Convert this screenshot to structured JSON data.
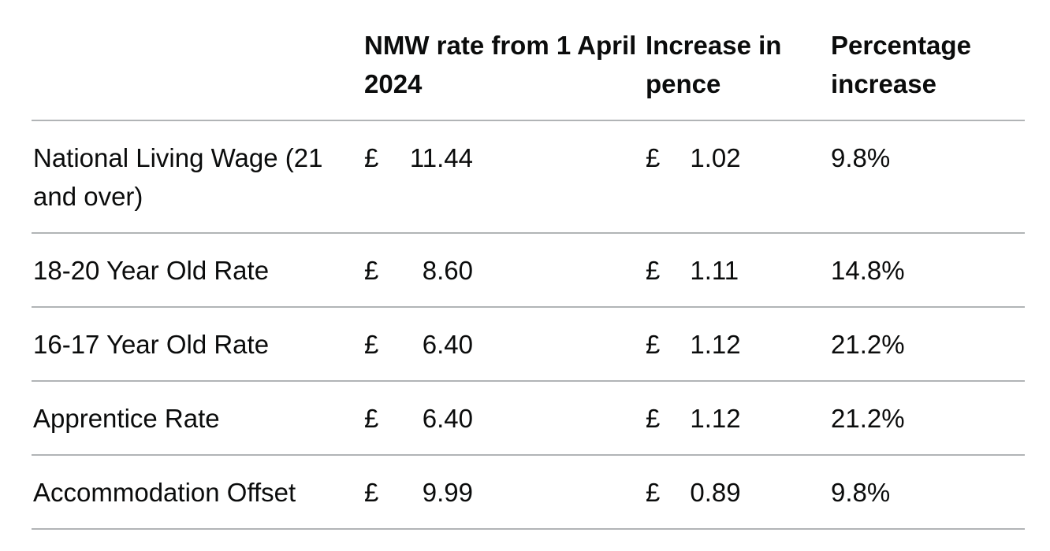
{
  "table": {
    "headers": [
      "NMW rate from 1 April 2024",
      "Increase in pence",
      "Percentage increase"
    ],
    "rows": [
      [
        "National Living Wage (21 and over)",
        "£",
        "11.44",
        "£",
        "1.02",
        "9.8%"
      ],
      [
        "18-20 Year Old Rate",
        "£",
        "8.60",
        "£",
        "1.11",
        "14.8%"
      ],
      [
        "16-17 Year Old Rate",
        "£",
        "6.40",
        "£",
        "1.12",
        "21.2%"
      ],
      [
        "Apprentice Rate",
        "£",
        "6.40",
        "£",
        "1.12",
        "21.2%"
      ],
      [
        "Accommodation Offset",
        "£",
        "9.99",
        "£",
        "0.89",
        "9.8%"
      ]
    ]
  }
}
